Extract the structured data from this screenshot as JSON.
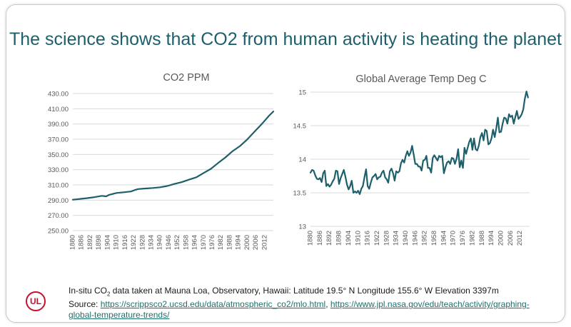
{
  "slide": {
    "title": "The science shows that CO2 from human activity is heating the planet"
  },
  "footer": {
    "line1_before": "In-situ CO",
    "line1_sub": "2",
    "line1_after": " data taken at Mauna Loa, Observatory, Hawaii: Latitude 19.5° N Longitude 155.6° W Elevation 3397m",
    "source_label": "Source: ",
    "link1": "https://scrippsco2.ucsd.edu/data/atmospheric_co2/mlo.html",
    "separator": ", ",
    "link2": "https://www.jpl.nasa.gov/edu/teach/activity/graphing-global-temperature-trends/"
  },
  "logo": {
    "text": "UL",
    "color": "#c8102e"
  },
  "colors": {
    "line": "#1d5f6a",
    "title": "#1d5f6a",
    "axis_text": "#595959"
  },
  "chart_data": [
    {
      "type": "line",
      "title": "CO2 PPM",
      "ylim": [
        250,
        430
      ],
      "yticks": [
        250,
        270,
        290,
        310,
        330,
        350,
        370,
        390,
        410,
        430
      ],
      "ytick_labels": [
        "250.00",
        "270.00",
        "290.00",
        "310.00",
        "330.00",
        "350.00",
        "370.00",
        "390.00",
        "410.00",
        "430.00"
      ],
      "xlim": [
        1880,
        2018
      ],
      "xticks": [
        1880,
        1886,
        1892,
        1898,
        1904,
        1910,
        1916,
        1922,
        1928,
        1934,
        1940,
        1946,
        1952,
        1958,
        1964,
        1970,
        1976,
        1982,
        1988,
        1994,
        2000,
        2006,
        2012
      ],
      "grid": "horizontal",
      "series": [
        {
          "x": [
            1880,
            1885,
            1890,
            1895,
            1900,
            1903,
            1905,
            1910,
            1915,
            1920,
            1923,
            1925,
            1930,
            1935,
            1940,
            1945,
            1950,
            1955,
            1960,
            1965,
            1970,
            1975,
            1980,
            1985,
            1990,
            1995,
            2000,
            2005,
            2010,
            2015,
            2018
          ],
          "y": [
            290.6,
            291.6,
            292.7,
            294.0,
            295.7,
            295.0,
            297.0,
            299.4,
            300.3,
            301.4,
            303.5,
            304.6,
            305.3,
            306.0,
            306.9,
            308.6,
            311.3,
            313.7,
            316.9,
            320.0,
            325.7,
            331.1,
            338.8,
            346.1,
            354.4,
            361.0,
            369.6,
            379.8,
            389.9,
            400.8,
            406.5
          ]
        }
      ]
    },
    {
      "type": "line",
      "title": "Global Average Temp Deg C",
      "ylim": [
        13,
        15
      ],
      "yticks": [
        13,
        13.5,
        14,
        14.5,
        15
      ],
      "ytick_labels": [
        "13",
        "13.5",
        "14",
        "14.5",
        "15"
      ],
      "xlim": [
        1880,
        2018
      ],
      "xticks": [
        1880,
        1886,
        1892,
        1898,
        1904,
        1910,
        1916,
        1922,
        1928,
        1934,
        1940,
        1946,
        1952,
        1958,
        1964,
        1970,
        1976,
        1982,
        1988,
        1994,
        2000,
        2006,
        2012
      ],
      "grid": "horizontal",
      "series": [
        {
          "x": [
            1880,
            1881,
            1882,
            1883,
            1884,
            1885,
            1886,
            1887,
            1888,
            1889,
            1890,
            1891,
            1892,
            1893,
            1894,
            1895,
            1896,
            1897,
            1898,
            1899,
            1900,
            1901,
            1902,
            1903,
            1904,
            1905,
            1906,
            1907,
            1908,
            1909,
            1910,
            1911,
            1912,
            1913,
            1914,
            1915,
            1916,
            1917,
            1918,
            1919,
            1920,
            1921,
            1922,
            1923,
            1924,
            1925,
            1926,
            1927,
            1928,
            1929,
            1930,
            1931,
            1932,
            1933,
            1934,
            1935,
            1936,
            1937,
            1938,
            1939,
            1940,
            1941,
            1942,
            1943,
            1944,
            1945,
            1946,
            1947,
            1948,
            1949,
            1950,
            1951,
            1952,
            1953,
            1954,
            1955,
            1956,
            1957,
            1958,
            1959,
            1960,
            1961,
            1962,
            1963,
            1964,
            1965,
            1966,
            1967,
            1968,
            1969,
            1970,
            1971,
            1972,
            1973,
            1974,
            1975,
            1976,
            1977,
            1978,
            1979,
            1980,
            1981,
            1982,
            1983,
            1984,
            1985,
            1986,
            1987,
            1988,
            1989,
            1990,
            1991,
            1992,
            1993,
            1994,
            1995,
            1996,
            1997,
            1998,
            1999,
            2000,
            2001,
            2002,
            2003,
            2004,
            2005,
            2006,
            2007,
            2008,
            2009,
            2010,
            2011,
            2012,
            2013,
            2014,
            2015,
            2016,
            2017
          ],
          "y": [
            13.8,
            13.84,
            13.83,
            13.76,
            13.71,
            13.7,
            13.72,
            13.66,
            13.79,
            13.83,
            13.6,
            13.63,
            13.59,
            13.62,
            13.67,
            13.71,
            13.83,
            13.82,
            13.63,
            13.72,
            13.78,
            13.84,
            13.74,
            13.62,
            13.55,
            13.6,
            13.68,
            13.5,
            13.52,
            13.5,
            13.53,
            13.48,
            13.56,
            13.6,
            13.73,
            13.85,
            13.6,
            13.56,
            13.65,
            13.73,
            13.75,
            13.78,
            13.7,
            13.73,
            13.74,
            13.8,
            13.83,
            13.73,
            13.7,
            13.65,
            13.82,
            13.86,
            13.79,
            13.68,
            13.82,
            13.8,
            13.82,
            13.94,
            13.99,
            13.95,
            14.05,
            14.12,
            14.05,
            14.1,
            14.2,
            14.07,
            13.93,
            13.93,
            13.89,
            13.89,
            13.83,
            13.98,
            13.99,
            14.05,
            13.87,
            13.87,
            13.8,
            14.02,
            14.06,
            14.02,
            13.98,
            14.05,
            14.03,
            14.05,
            13.79,
            13.88,
            13.95,
            13.97,
            13.93,
            14.02,
            14.01,
            13.93,
            14.01,
            14.15,
            13.88,
            13.98,
            13.87,
            14.17,
            14.08,
            14.17,
            14.26,
            14.31,
            14.14,
            14.31,
            14.15,
            14.13,
            14.2,
            14.33,
            14.39,
            14.28,
            14.44,
            14.42,
            14.22,
            14.24,
            14.31,
            14.44,
            14.33,
            14.46,
            14.62,
            14.4,
            14.41,
            14.53,
            14.62,
            14.61,
            14.53,
            14.67,
            14.63,
            14.65,
            14.53,
            14.63,
            14.72,
            14.6,
            14.63,
            14.67,
            14.74,
            14.9,
            15.01,
            14.92
          ]
        }
      ]
    }
  ]
}
